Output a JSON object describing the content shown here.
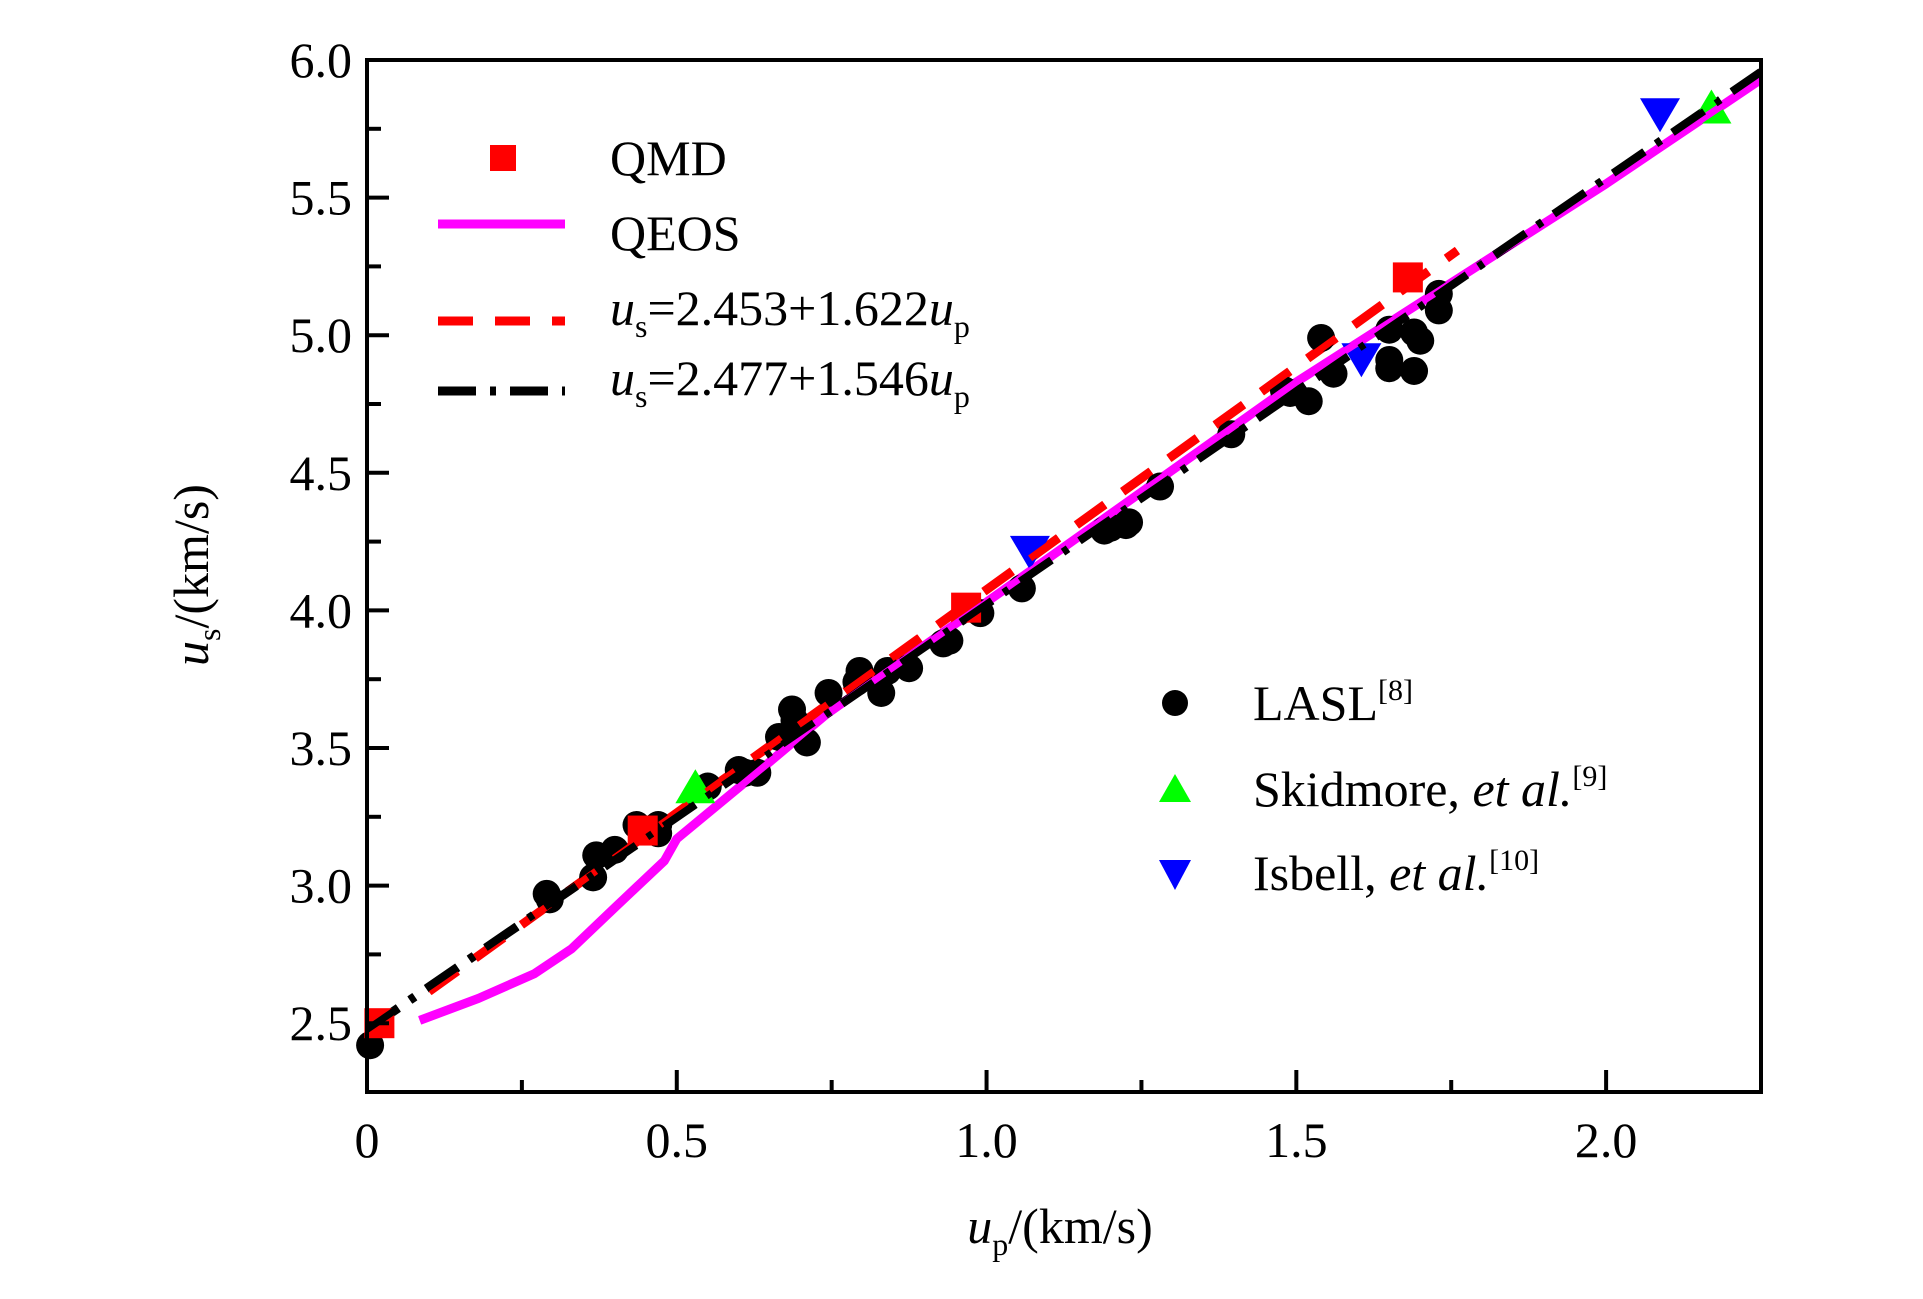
{
  "chart_data": {
    "type": "scatter",
    "title": "",
    "xlabel": {
      "var": "u",
      "sub": "p",
      "unit": "/(km/s)"
    },
    "ylabel": {
      "var": "u",
      "sub": "s",
      "unit": "/(km/s)"
    },
    "xlim": [
      0,
      2.25
    ],
    "ylim": [
      2.25,
      6.0
    ],
    "x_ticks": [
      {
        "value": 0,
        "label": "0"
      },
      {
        "value": 0.5,
        "label": "0.5"
      },
      {
        "value": 1.0,
        "label": "1.0"
      },
      {
        "value": 1.5,
        "label": "1.5"
      },
      {
        "value": 2.0,
        "label": "2.0"
      }
    ],
    "x_minor_ticks": [
      0.25,
      0.75,
      1.25,
      1.75
    ],
    "y_ticks": [
      {
        "value": 2.5,
        "label": "2.5"
      },
      {
        "value": 3.0,
        "label": "3.0"
      },
      {
        "value": 3.5,
        "label": "3.5"
      },
      {
        "value": 4.0,
        "label": "4.0"
      },
      {
        "value": 4.5,
        "label": "4.5"
      },
      {
        "value": 5.0,
        "label": "5.0"
      },
      {
        "value": 5.5,
        "label": "5.5"
      },
      {
        "value": 6.0,
        "label": "6.0"
      }
    ],
    "y_minor_ticks": [
      2.75,
      3.25,
      3.75,
      4.25,
      4.75,
      5.25,
      5.75
    ],
    "grid": false,
    "legends": [
      {
        "placement": "top-left",
        "entries": [
          "QMD",
          "QEOS",
          "fit-qmd",
          "fit-exp"
        ]
      },
      {
        "placement": "center-right",
        "entries": [
          "LASL",
          "Skidmore",
          "Isbell"
        ]
      }
    ],
    "series": [
      {
        "id": "QMD",
        "name": "QMD",
        "kind": "marker",
        "marker": "square",
        "color": "#ff0000",
        "points": [
          [
            0.02,
            2.5
          ],
          [
            0.445,
            3.2
          ],
          [
            0.967,
            4.01
          ],
          [
            1.68,
            5.21
          ]
        ]
      },
      {
        "id": "QEOS",
        "name": "QEOS",
        "kind": "line",
        "style": "solid",
        "color": "#ff00ff",
        "points": [
          [
            0.085,
            2.51
          ],
          [
            0.18,
            2.59
          ],
          [
            0.27,
            2.68
          ],
          [
            0.33,
            2.77
          ],
          [
            0.4,
            2.92
          ],
          [
            0.48,
            3.09
          ],
          [
            0.5,
            3.17
          ],
          [
            0.645,
            3.44
          ],
          [
            0.74,
            3.62
          ],
          [
            0.815,
            3.74
          ],
          [
            1.0,
            4.03
          ],
          [
            1.5,
            4.83
          ],
          [
            2.0,
            5.55
          ],
          [
            2.25,
            5.93
          ]
        ]
      },
      {
        "id": "fit-qmd",
        "name": "u_s=2.453+1.622u_p",
        "label": {
          "var": "u",
          "sub1": "s",
          "body": "=2.453+1.622",
          "var2": "u",
          "sub2": "p"
        },
        "kind": "fit",
        "style": "dashed",
        "color": "#ff0000",
        "intercept": 2.453,
        "slope": 1.622,
        "x_range": [
          0.1,
          1.76
        ]
      },
      {
        "id": "fit-exp",
        "name": "u_s=2.477+1.546u_p",
        "label": {
          "var": "u",
          "sub1": "s",
          "body": "=2.477+1.546",
          "var2": "u",
          "sub2": "p"
        },
        "kind": "fit",
        "style": "dash-dot",
        "color": "#000000",
        "intercept": 2.477,
        "slope": 1.546,
        "x_range": [
          0.0,
          2.25
        ]
      },
      {
        "id": "LASL",
        "name": "LASL",
        "ref": "[8]",
        "kind": "marker",
        "marker": "circle",
        "color": "#000000",
        "points": [
          [
            0.005,
            2.42
          ],
          [
            0.29,
            2.97
          ],
          [
            0.295,
            2.95
          ],
          [
            0.365,
            3.03
          ],
          [
            0.37,
            3.11
          ],
          [
            0.4,
            3.13
          ],
          [
            0.435,
            3.22
          ],
          [
            0.47,
            3.19
          ],
          [
            0.47,
            3.22
          ],
          [
            0.55,
            3.36
          ],
          [
            0.6,
            3.42
          ],
          [
            0.61,
            3.41
          ],
          [
            0.63,
            3.41
          ],
          [
            0.665,
            3.54
          ],
          [
            0.686,
            3.64
          ],
          [
            0.69,
            3.6
          ],
          [
            0.71,
            3.52
          ],
          [
            0.745,
            3.7
          ],
          [
            0.79,
            3.74
          ],
          [
            0.795,
            3.78
          ],
          [
            0.83,
            3.7
          ],
          [
            0.84,
            3.78
          ],
          [
            0.875,
            3.79
          ],
          [
            0.93,
            3.88
          ],
          [
            0.94,
            3.89
          ],
          [
            0.99,
            3.99
          ],
          [
            1.057,
            4.08
          ],
          [
            1.19,
            4.29
          ],
          [
            1.2,
            4.3
          ],
          [
            1.225,
            4.31
          ],
          [
            1.23,
            4.32
          ],
          [
            1.28,
            4.45
          ],
          [
            1.395,
            4.64
          ],
          [
            1.48,
            4.8
          ],
          [
            1.49,
            4.79
          ],
          [
            1.52,
            4.76
          ],
          [
            1.54,
            4.99
          ],
          [
            1.56,
            4.86
          ],
          [
            1.65,
            4.91
          ],
          [
            1.65,
            4.88
          ],
          [
            1.65,
            5.02
          ],
          [
            1.69,
            4.87
          ],
          [
            1.7,
            4.98
          ],
          [
            1.69,
            5.01
          ],
          [
            1.73,
            5.09
          ],
          [
            1.73,
            5.15
          ]
        ]
      },
      {
        "id": "Skidmore",
        "name": "Skidmore, et al.",
        "label": {
          "plain": "Skidmore, ",
          "italic": "et al.",
          "ref": "[9]"
        },
        "kind": "marker",
        "marker": "triangle-up",
        "color": "#00ff00",
        "points": [
          [
            0.53,
            3.35
          ],
          [
            2.17,
            5.82
          ]
        ]
      },
      {
        "id": "Isbell",
        "name": "Isbell, et al.",
        "label": {
          "plain": "Isbell, ",
          "italic": "et al.",
          "ref": "[10]"
        },
        "kind": "marker",
        "marker": "triangle-down",
        "color": "#0000ff",
        "points": [
          [
            1.07,
            4.22
          ],
          [
            1.605,
            4.92
          ],
          [
            2.087,
            5.81
          ]
        ]
      }
    ]
  },
  "legend_labels": {
    "qmd": "QMD",
    "qeos": "QEOS",
    "fit_qmd": {
      "var": "u",
      "sub1": "s",
      "body": "=2.453+1.622",
      "var2": "u",
      "sub2": "p"
    },
    "fit_exp": {
      "var": "u",
      "sub1": "s",
      "body": "=2.477+1.546",
      "var2": "u",
      "sub2": "p"
    },
    "lasl": {
      "plain": "LASL",
      "ref": "[8]"
    },
    "skidmore": {
      "plain": "Skidmore, ",
      "italic": "et al.",
      "ref": "[9]"
    },
    "isbell": {
      "plain": "Isbell, ",
      "italic": "et al.",
      "ref": "[10]"
    }
  }
}
